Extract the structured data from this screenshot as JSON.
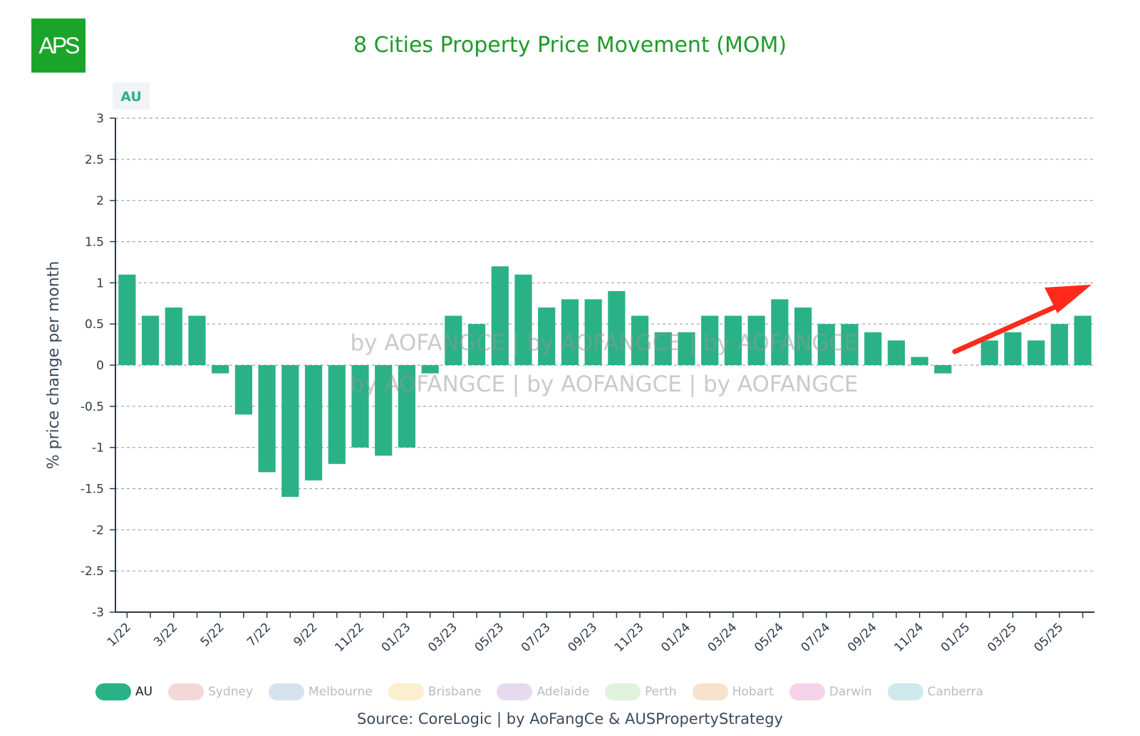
{
  "logo": {
    "text": "APS",
    "color": "#1aa52a"
  },
  "title": "8 Cities Property Price Movement (MOM)",
  "source": "Source: CoreLogic | by AoFangCe & AUSPropertyStrategy",
  "watermark": {
    "line1": "by AOFANGCE | by AOFANGCE | by AOFANGCE",
    "line2": "by AOFANGCE | by AOFANGCE | by AOFANGCE"
  },
  "annotation": {
    "type": "trend-arrow",
    "color": "#ff2a1a"
  },
  "legend": [
    {
      "label": "AU",
      "color": "#2ab286",
      "active": true
    },
    {
      "label": "Sydney",
      "color": "#f4d7d7",
      "active": false
    },
    {
      "label": "Melbourne",
      "color": "#d7e2ef",
      "active": false
    },
    {
      "label": "Brisbane",
      "color": "#fbefcd",
      "active": false
    },
    {
      "label": "Adelaide",
      "color": "#e6dbee",
      "active": false
    },
    {
      "label": "Perth",
      "color": "#e1f2dc",
      "active": false
    },
    {
      "label": "Hobart",
      "color": "#f7e2cd",
      "active": false
    },
    {
      "label": "Darwin",
      "color": "#f5d3ea",
      "active": false
    },
    {
      "label": "Canberra",
      "color": "#cfe8ec",
      "active": false
    }
  ],
  "chart_data": {
    "type": "bar",
    "series_label": "AU",
    "bar_color": "#2ab286",
    "ylabel": "% price change per month",
    "ylim": [
      -3,
      3
    ],
    "yticks": [
      "3",
      "2.5",
      "2",
      "1.5",
      "1",
      "0.5",
      "0",
      "-0.5",
      "-1",
      "-1.5",
      "-2",
      "-2.5",
      "-3"
    ],
    "grid": true,
    "categories": [
      "1/22",
      "2/22",
      "3/22",
      "4/22",
      "5/22",
      "6/22",
      "7/22",
      "8/22",
      "9/22",
      "10/22",
      "11/22",
      "12/22",
      "01/23",
      "02/23",
      "03/23",
      "04/23",
      "05/23",
      "06/23",
      "07/23",
      "08/23",
      "09/23",
      "10/23",
      "11/23",
      "12/23",
      "01/24",
      "02/24",
      "03/24",
      "04/24",
      "05/24",
      "06/24",
      "07/24",
      "08/24",
      "09/24",
      "10/24",
      "11/24",
      "12/24",
      "01/25",
      "02/25",
      "03/25",
      "04/25",
      "05/25",
      "06/25"
    ],
    "xtick_labels": [
      "1/22",
      "3/22",
      "5/22",
      "7/22",
      "9/22",
      "11/22",
      "01/23",
      "03/23",
      "05/23",
      "07/23",
      "09/23",
      "11/23",
      "01/24",
      "03/24",
      "05/24",
      "07/24",
      "09/24",
      "11/24",
      "01/25",
      "03/25",
      "05/25"
    ],
    "values": [
      1.1,
      0.6,
      0.7,
      0.6,
      -0.1,
      -0.6,
      -1.3,
      -1.6,
      -1.4,
      -1.2,
      -1.0,
      -1.1,
      -1.0,
      -0.1,
      0.6,
      0.5,
      1.2,
      1.1,
      0.7,
      0.8,
      0.8,
      0.9,
      0.6,
      0.4,
      0.4,
      0.6,
      0.6,
      0.6,
      0.8,
      0.7,
      0.5,
      0.5,
      0.4,
      0.3,
      0.1,
      -0.1,
      0.0,
      0.3,
      0.4,
      0.3,
      0.5,
      0.6
    ]
  }
}
